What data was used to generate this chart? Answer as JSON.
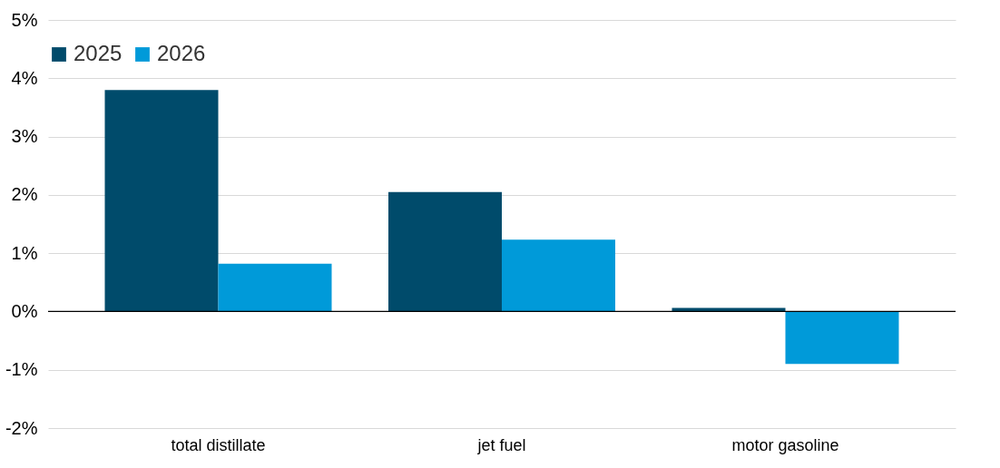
{
  "chart_data": {
    "type": "bar",
    "categories": [
      "total distillate",
      "jet fuel",
      "motor gasoline"
    ],
    "series": [
      {
        "name": "2025",
        "color": "#004b6b",
        "values": [
          3.8,
          2.05,
          0.06
        ]
      },
      {
        "name": "2026",
        "color": "#009ad9",
        "values": [
          0.82,
          1.23,
          -0.9
        ]
      }
    ],
    "ylim": [
      -2,
      5
    ],
    "yticks": [
      {
        "value": -2,
        "label": "-2%"
      },
      {
        "value": -1,
        "label": "-1%"
      },
      {
        "value": 0,
        "label": "0%"
      },
      {
        "value": 1,
        "label": "1%"
      },
      {
        "value": 2,
        "label": "2%"
      },
      {
        "value": 3,
        "label": "3%"
      },
      {
        "value": 4,
        "label": "4%"
      },
      {
        "value": 5,
        "label": "5%"
      }
    ],
    "grid": "y",
    "legend": "top"
  }
}
